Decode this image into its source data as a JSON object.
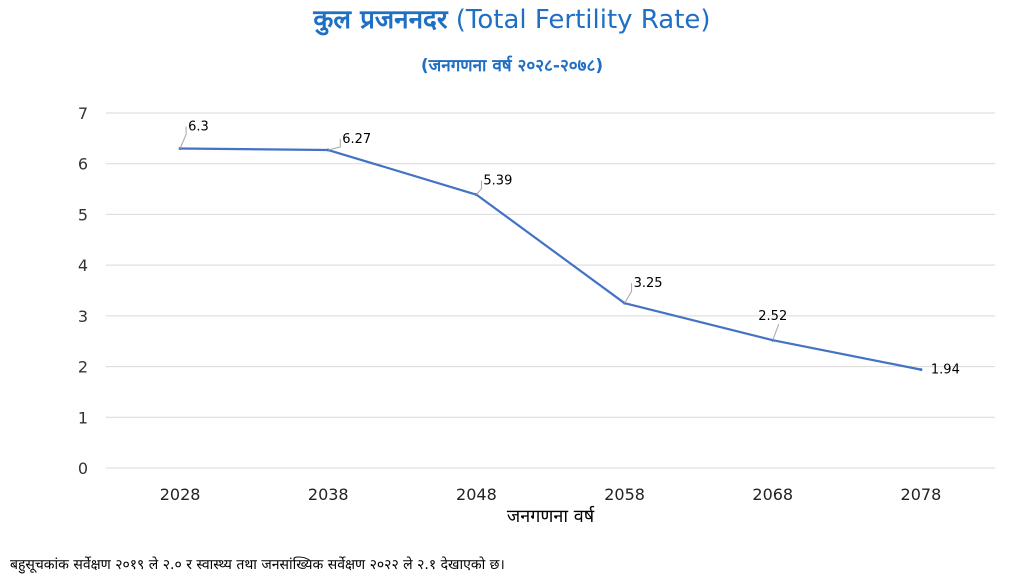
{
  "chart_data": {
    "type": "line",
    "title_devanagari": "कुल प्रजननदर",
    "title_english": "(Total Fertility Rate)",
    "subtitle": "(जनगणना वर्ष २०२८-२०७८)",
    "xlabel": "जनगणना वर्ष",
    "ylabel": "",
    "categories": [
      "2028",
      "2038",
      "2048",
      "2058",
      "2068",
      "2078"
    ],
    "series": [
      {
        "values": [
          6.3,
          6.27,
          5.39,
          3.25,
          2.52,
          1.94
        ]
      }
    ],
    "data_labels": [
      "6.3",
      "6.27",
      "5.39",
      "3.25",
      "2.52",
      "1.94"
    ],
    "ylim": [
      0,
      7
    ],
    "yticks": [
      "0",
      "1",
      "2",
      "3",
      "4",
      "5",
      "6",
      "7"
    ],
    "grid": true,
    "legend": "none",
    "line_color": "#4472c4",
    "grid_color": "#d9d9d9"
  },
  "footnote": "बहुसूचकांक सर्वेक्षण २०१९ ले २.० र स्वास्थ्य तथा जनसांख्यिक सर्वेक्षण २०२२ ले २.१ देखाएको छ।"
}
